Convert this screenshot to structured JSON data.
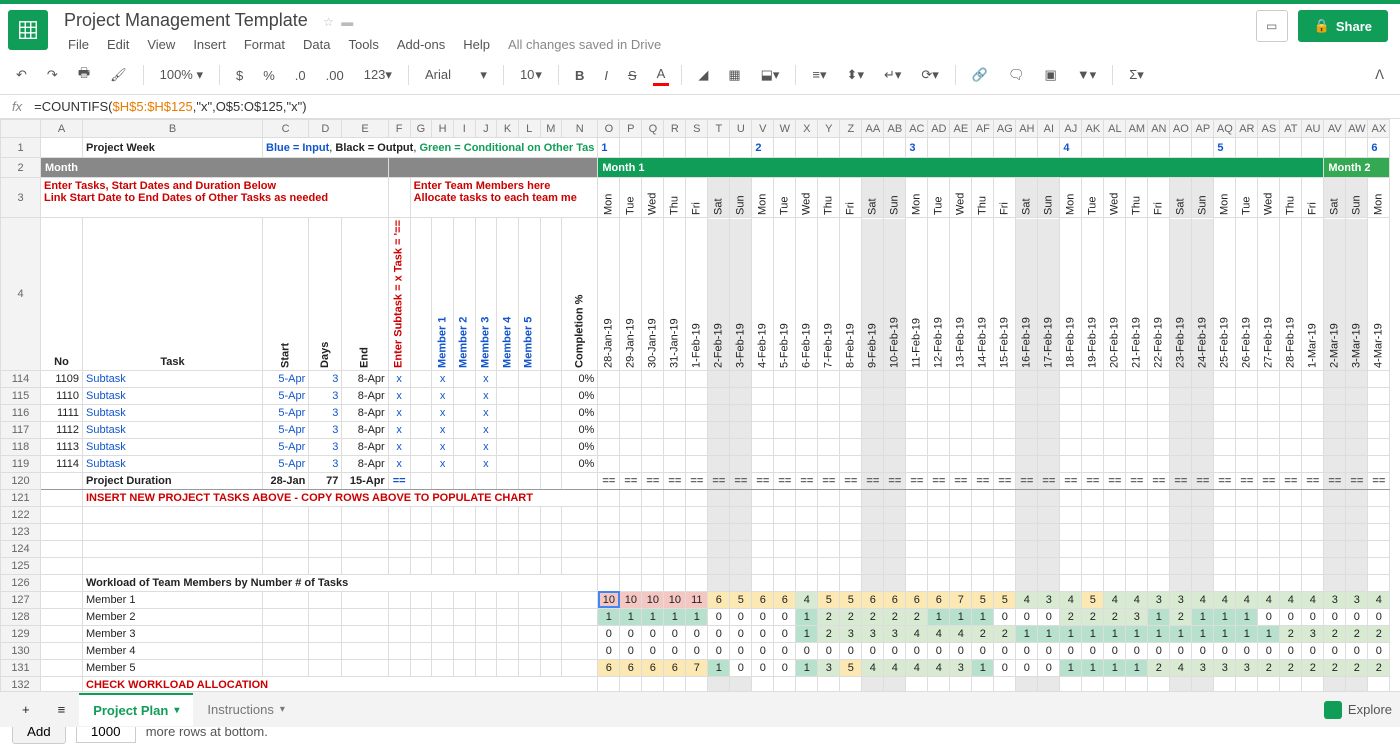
{
  "doc_title": "Project Management Template",
  "save_status": "All changes saved in Drive",
  "menu": [
    "File",
    "Edit",
    "View",
    "Insert",
    "Format",
    "Data",
    "Tools",
    "Add-ons",
    "Help"
  ],
  "toolbar": {
    "zoom": "100%",
    "font": "Arial",
    "size": "10",
    "currency": "$",
    "pct": "%",
    "num_fmt": "123"
  },
  "share_label": "Share",
  "formula": {
    "prefix": "=COUNTIFS(",
    "range1": "$H$5:$H$125",
    "mid": ",\"x\",O$5:O$125,",
    "arg2": "\"x\"",
    "suffix": ")"
  },
  "col_letters": [
    "A",
    "B",
    "C",
    "D",
    "E",
    "F",
    "G",
    "H",
    "I",
    "J",
    "K",
    "L",
    "M",
    "N",
    "O",
    "P",
    "Q",
    "R",
    "S",
    "T",
    "U",
    "V",
    "W",
    "X",
    "Y",
    "Z",
    "AA",
    "AB",
    "AC",
    "AD",
    "AE",
    "AF",
    "AG",
    "AH",
    "AI",
    "AJ",
    "AK",
    "AL",
    "AM",
    "AN",
    "AO",
    "AP",
    "AQ",
    "AR",
    "AS",
    "AT",
    "AU",
    "AV",
    "AW",
    "AX"
  ],
  "row1": {
    "b": "Project Week",
    "legend_blue": "Blue = Input",
    "legend_black": "Black = Output",
    "legend_green": "Green = Conditional on Other Tas",
    "weeks": [
      "1",
      "",
      "",
      "",
      "",
      "",
      "",
      "2",
      "",
      "",
      "",
      "",
      "",
      "",
      "3",
      "",
      "",
      "",
      "",
      "",
      "",
      "4",
      "",
      "",
      "",
      "",
      "",
      "",
      "5",
      "",
      "",
      "",
      "",
      "",
      "",
      "6",
      "",
      "",
      "",
      "",
      ""
    ]
  },
  "row2": {
    "month_label": "Month",
    "month1": "Month 1",
    "month2": "Month 2"
  },
  "row3": {
    "left1": "Enter Tasks, Start Dates and Duration Below",
    "left2": "Link Start Date to End Dates of Other Tasks as needed",
    "right1": "Enter Team Members here",
    "right2": "Allocate tasks to each team me"
  },
  "days_of_week": [
    "Mon",
    "Tue",
    "Wed",
    "Thu",
    "Fri",
    "Sat",
    "Sun",
    "Mon",
    "Tue",
    "Wed",
    "Thu",
    "Fri",
    "Sat",
    "Sun",
    "Mon",
    "Tue",
    "Wed",
    "Thu",
    "Fri",
    "Sat",
    "Sun",
    "Mon",
    "Tue",
    "Wed",
    "Thu",
    "Fri",
    "Sat",
    "Sun",
    "Mon",
    "Tue",
    "Wed",
    "Thu",
    "Fri",
    "Sat",
    "Sun",
    "Mon"
  ],
  "dates": [
    "28-Jan-19",
    "29-Jan-19",
    "30-Jan-19",
    "31-Jan-19",
    "1-Feb-19",
    "2-Feb-19",
    "3-Feb-19",
    "4-Feb-19",
    "5-Feb-19",
    "6-Feb-19",
    "7-Feb-19",
    "8-Feb-19",
    "9-Feb-19",
    "10-Feb-19",
    "11-Feb-19",
    "12-Feb-19",
    "13-Feb-19",
    "14-Feb-19",
    "15-Feb-19",
    "16-Feb-19",
    "17-Feb-19",
    "18-Feb-19",
    "19-Feb-19",
    "20-Feb-19",
    "21-Feb-19",
    "22-Feb-19",
    "23-Feb-19",
    "24-Feb-19",
    "25-Feb-19",
    "26-Feb-19",
    "27-Feb-19",
    "28-Feb-19",
    "1-Mar-19",
    "2-Mar-19",
    "3-Mar-19",
    "4-Mar-19"
  ],
  "weekend_idx": [
    5,
    6,
    12,
    13,
    19,
    20,
    26,
    27,
    33,
    34
  ],
  "row4_headers": {
    "no": "No",
    "task": "Task",
    "start": "Start",
    "days": "Days",
    "end": "End",
    "subtask": "Enter Subtask = x\nTask = '==",
    "m1": "Member 1",
    "m2": "Member 2",
    "m3": "Member 3",
    "m4": "Member 4",
    "m5": "Member 5",
    "completion": "Completion %"
  },
  "task_rows": [
    {
      "rn": 114,
      "no": 1109,
      "task": "Subtask",
      "start": "5-Apr",
      "days": 3,
      "end": "8-Apr",
      "f": "x",
      "h": "x",
      "j": "x",
      "comp": "0%"
    },
    {
      "rn": 115,
      "no": 1110,
      "task": "Subtask",
      "start": "5-Apr",
      "days": 3,
      "end": "8-Apr",
      "f": "x",
      "h": "x",
      "j": "x",
      "comp": "0%"
    },
    {
      "rn": 116,
      "no": 1111,
      "task": "Subtask",
      "start": "5-Apr",
      "days": 3,
      "end": "8-Apr",
      "f": "x",
      "h": "x",
      "j": "x",
      "comp": "0%"
    },
    {
      "rn": 117,
      "no": 1112,
      "task": "Subtask",
      "start": "5-Apr",
      "days": 3,
      "end": "8-Apr",
      "f": "x",
      "h": "x",
      "j": "x",
      "comp": "0%"
    },
    {
      "rn": 118,
      "no": 1113,
      "task": "Subtask",
      "start": "5-Apr",
      "days": 3,
      "end": "8-Apr",
      "f": "x",
      "h": "x",
      "j": "x",
      "comp": "0%"
    },
    {
      "rn": 119,
      "no": 1114,
      "task": "Subtask",
      "start": "5-Apr",
      "days": 3,
      "end": "8-Apr",
      "f": "x",
      "h": "x",
      "j": "x",
      "comp": "0%"
    }
  ],
  "row120": {
    "rn": 120,
    "b": "Project Duration",
    "start": "28-Jan",
    "days": 77,
    "end": "15-Apr",
    "f": "=="
  },
  "row121": {
    "rn": 121,
    "text": "INSERT NEW PROJECT TASKS ABOVE - COPY ROWS ABOVE TO POPULATE CHART"
  },
  "empty_rows": [
    122,
    123,
    124,
    125
  ],
  "row126": {
    "rn": 126,
    "text": "Workload of Team Members by Number # of Tasks"
  },
  "workload": [
    {
      "rn": 127,
      "label": "Member 1",
      "vals": [
        10,
        10,
        10,
        10,
        11,
        6,
        5,
        6,
        6,
        4,
        5,
        5,
        6,
        6,
        6,
        6,
        7,
        5,
        5,
        4,
        3,
        4,
        5,
        4,
        4,
        3,
        3,
        4,
        4,
        4,
        4,
        4,
        4,
        3,
        3,
        4
      ]
    },
    {
      "rn": 128,
      "label": "Member 2",
      "vals": [
        1,
        1,
        1,
        1,
        1,
        0,
        0,
        0,
        0,
        1,
        2,
        2,
        2,
        2,
        2,
        1,
        1,
        1,
        0,
        0,
        0,
        2,
        2,
        2,
        3,
        1,
        2,
        1,
        1,
        1,
        0,
        0,
        0,
        0,
        0,
        0
      ]
    },
    {
      "rn": 129,
      "label": "Member 3",
      "vals": [
        0,
        0,
        0,
        0,
        0,
        0,
        0,
        0,
        0,
        1,
        2,
        3,
        3,
        3,
        4,
        4,
        4,
        2,
        2,
        1,
        1,
        1,
        1,
        1,
        1,
        1,
        1,
        1,
        1,
        1,
        1,
        2,
        3,
        2,
        2,
        2
      ]
    },
    {
      "rn": 130,
      "label": "Member 4",
      "vals": [
        0,
        0,
        0,
        0,
        0,
        0,
        0,
        0,
        0,
        0,
        0,
        0,
        0,
        0,
        0,
        0,
        0,
        0,
        0,
        0,
        0,
        0,
        0,
        0,
        0,
        0,
        0,
        0,
        0,
        0,
        0,
        0,
        0,
        0,
        0,
        0
      ]
    },
    {
      "rn": 131,
      "label": "Member 5",
      "vals": [
        6,
        6,
        6,
        6,
        7,
        1,
        0,
        0,
        0,
        1,
        3,
        5,
        4,
        4,
        4,
        4,
        3,
        1,
        0,
        0,
        0,
        1,
        1,
        1,
        1,
        2,
        4,
        3,
        3,
        3,
        2,
        2,
        2,
        2,
        2,
        2
      ]
    }
  ],
  "row132": {
    "rn": 132,
    "text": "CHECK WORKLOAD ALLOCATION"
  },
  "row133": {
    "rn": 133
  },
  "add_rows": {
    "btn": "Add",
    "count": "1000",
    "suffix": "more rows at bottom."
  },
  "tabs": [
    {
      "label": "Project Plan",
      "active": true
    },
    {
      "label": "Instructions",
      "active": false
    }
  ],
  "explore_label": "Explore"
}
